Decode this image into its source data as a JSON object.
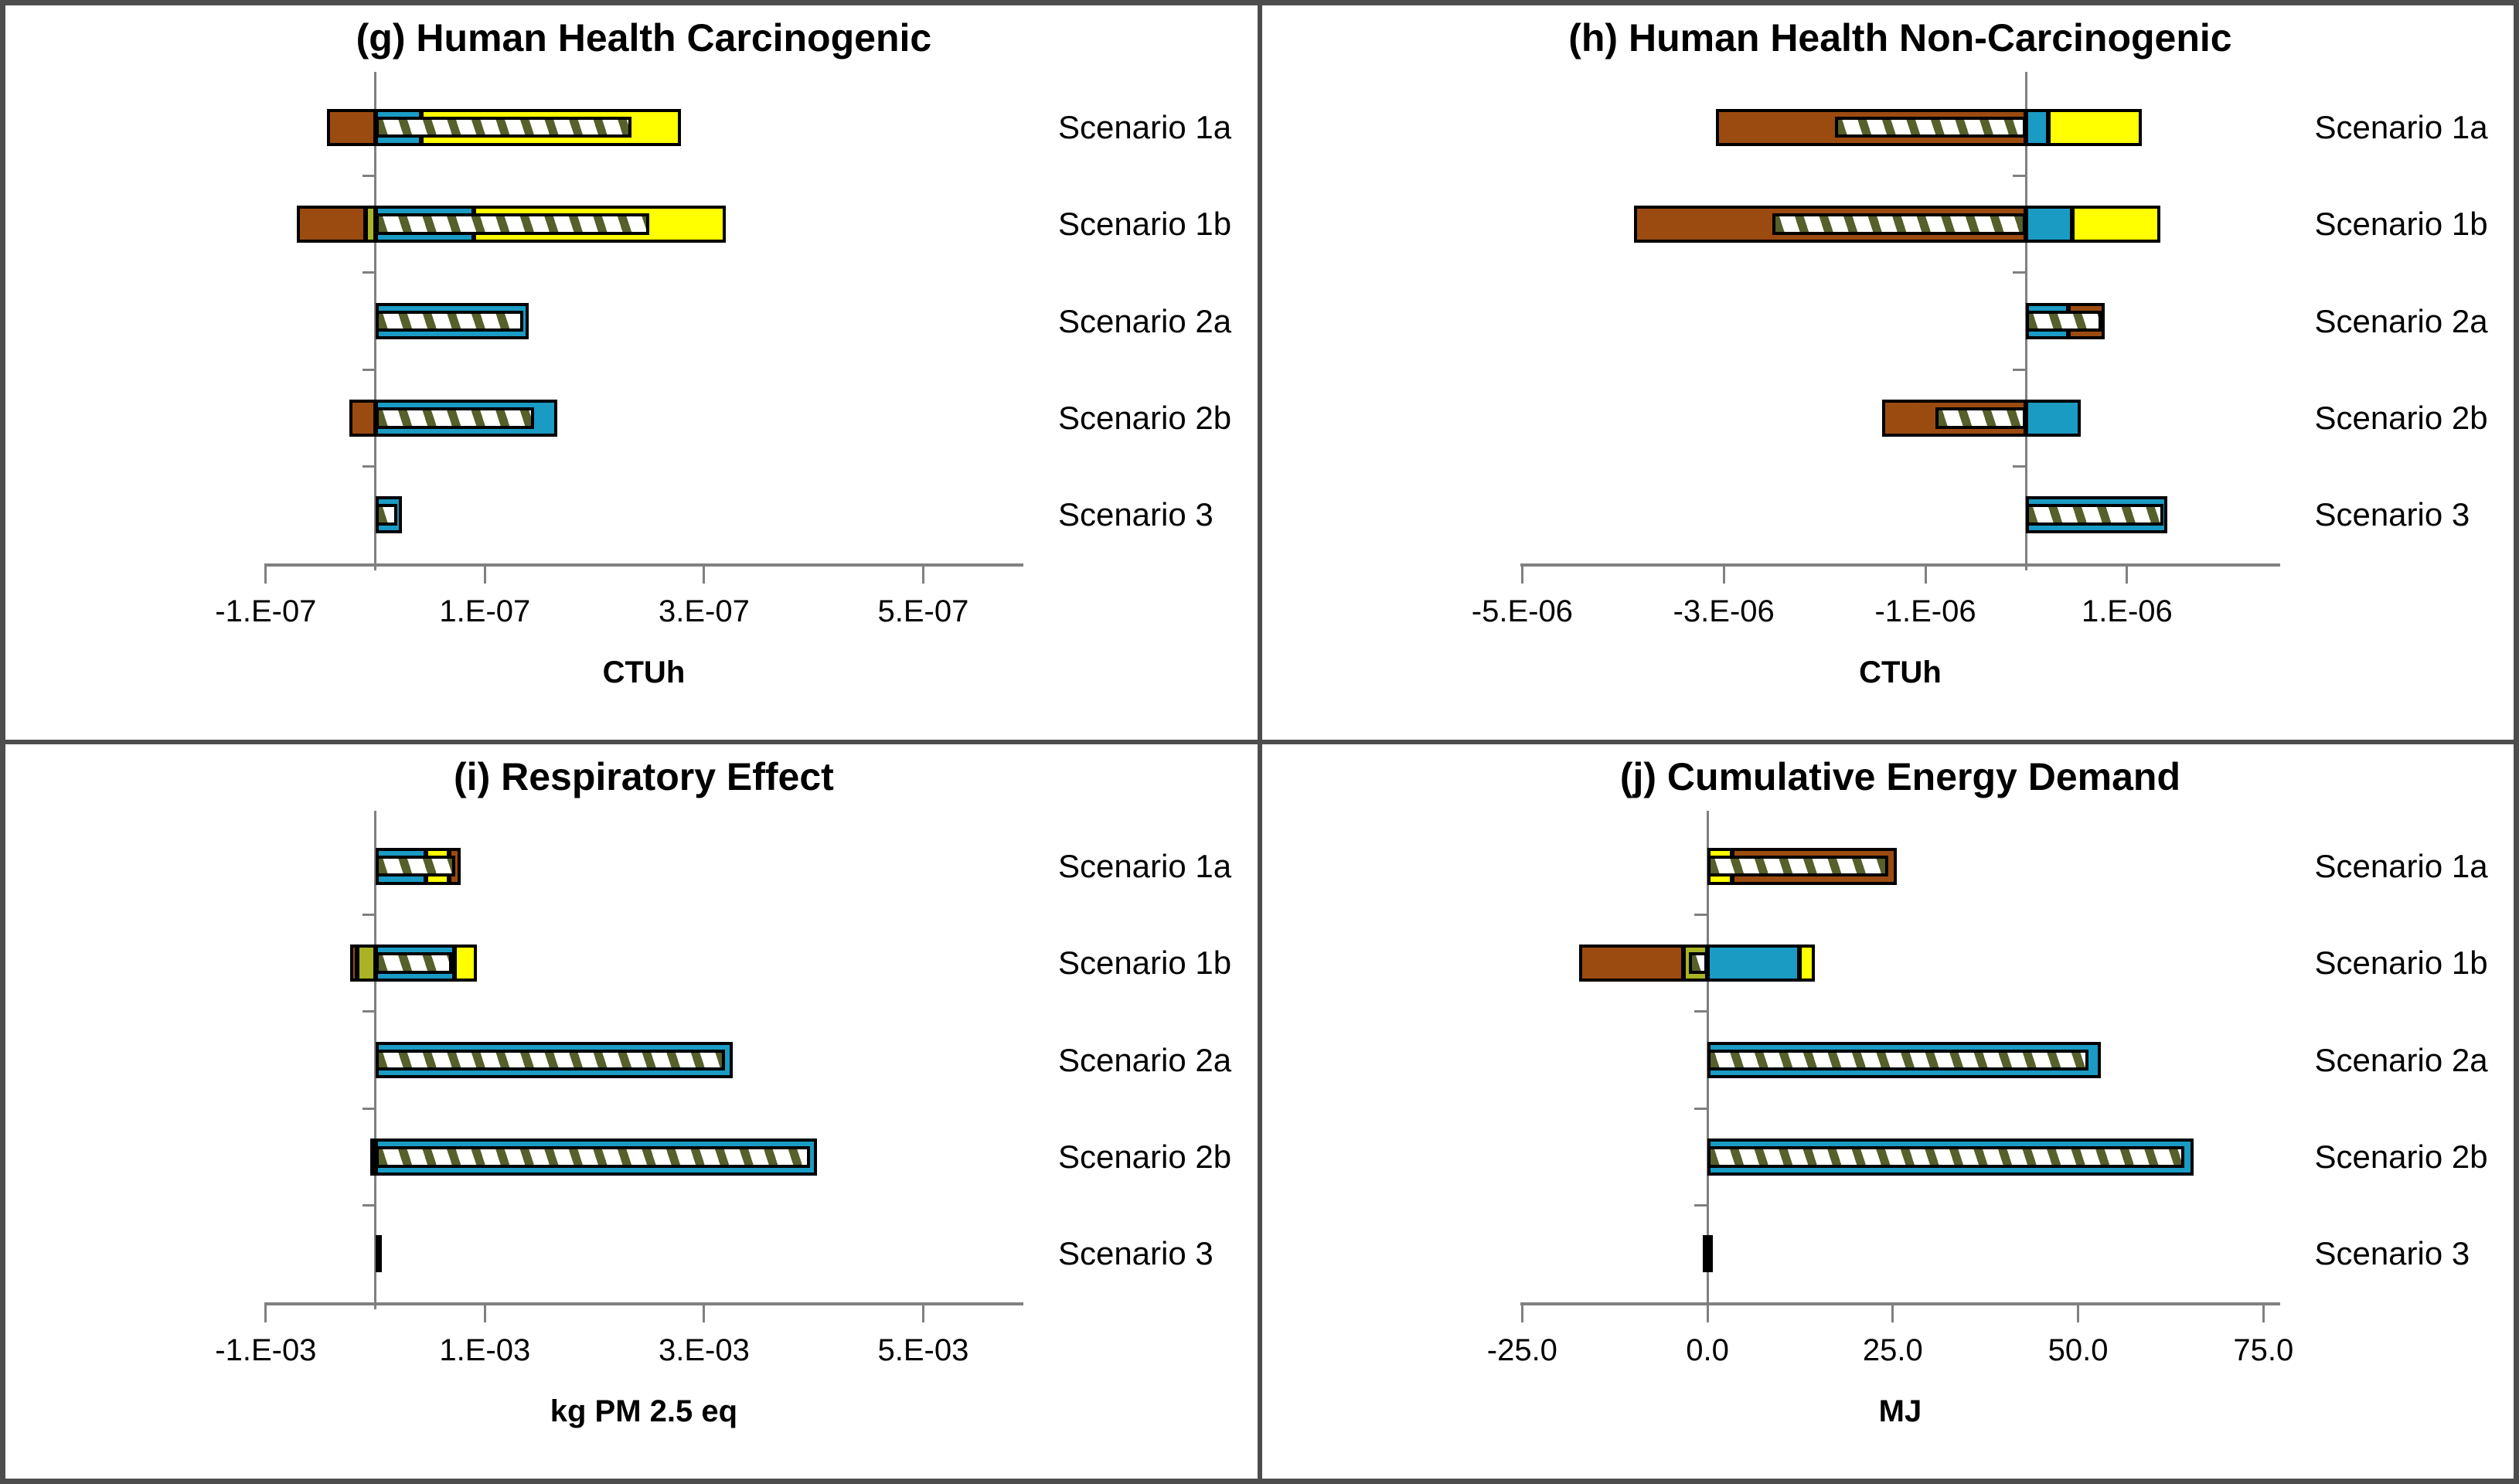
{
  "figure": {
    "background": "#ffffff",
    "border_color": "#4d4d4d",
    "scenario_labels": [
      "Scenario 1a",
      "Scenario 1b",
      "Scenario 2a",
      "Scenario 2b",
      "Scenario 3"
    ]
  },
  "palette": {
    "brown": "#9C4B10",
    "blue": "#1A9BC4",
    "yellow": "#FFFF00",
    "olive": "#A9B323",
    "black": "#000000",
    "hatch_stripe": "#55602A",
    "hatch_bg": "#FFFFFF",
    "axis_gray": "#808080",
    "bar_border": "#000000"
  },
  "chart_data": [
    {
      "id": "g",
      "type": "bar",
      "orientation": "horizontal",
      "title": "(g) Human Health Carcinogenic",
      "xlabel": "CTUh",
      "axis": {
        "min": -1e-07,
        "max": 5.9e-07
      },
      "ticks": [
        {
          "v": -1e-07,
          "label": "-1.E-07"
        },
        {
          "v": 1e-07,
          "label": "1.E-07"
        },
        {
          "v": 3e-07,
          "label": "3.E-07"
        },
        {
          "v": 5e-07,
          "label": "5.E-07"
        }
      ],
      "bars": [
        {
          "category": "Scenario 1a",
          "segments": [
            {
              "series": "brown",
              "from": -4.4e-08,
              "to": 0
            },
            {
              "series": "blue",
              "from": 0,
              "to": 4.2e-08
            },
            {
              "series": "yellow",
              "from": 4.2e-08,
              "to": 2.79e-07
            }
          ],
          "net": {
            "from": 0,
            "to": 2.34e-07
          }
        },
        {
          "category": "Scenario 1b",
          "segments": [
            {
              "series": "brown",
              "from": -7.2e-08,
              "to": -9e-09
            },
            {
              "series": "olive",
              "from": -9e-09,
              "to": 0
            },
            {
              "series": "blue",
              "from": 0,
              "to": 9e-08
            },
            {
              "series": "yellow",
              "from": 9e-08,
              "to": 3.2e-07
            }
          ],
          "net": {
            "from": 0,
            "to": 2.5e-07
          }
        },
        {
          "category": "Scenario 2a",
          "segments": [
            {
              "series": "blue",
              "from": 0,
              "to": 1.4e-07
            }
          ],
          "net": {
            "from": 0,
            "to": 1.35e-07
          }
        },
        {
          "category": "Scenario 2b",
          "segments": [
            {
              "series": "brown",
              "from": -2.4e-08,
              "to": 0
            },
            {
              "series": "blue",
              "from": 0,
              "to": 1.66e-07
            }
          ],
          "net": {
            "from": 0,
            "to": 1.45e-07
          }
        },
        {
          "category": "Scenario 3",
          "segments": [
            {
              "series": "blue",
              "from": 0,
              "to": 2.4e-08
            }
          ],
          "net": {
            "from": 0,
            "to": 2e-08
          }
        }
      ]
    },
    {
      "id": "h",
      "type": "bar",
      "orientation": "horizontal",
      "title": "(h) Human Health Non-Carcinogenic",
      "xlabel": "CTUh",
      "axis": {
        "min": -5e-06,
        "max": 2.5e-06
      },
      "ticks": [
        {
          "v": -5e-06,
          "label": "-5.E-06"
        },
        {
          "v": -3e-06,
          "label": "-3.E-06"
        },
        {
          "v": -1e-06,
          "label": "-1.E-06"
        },
        {
          "v": 1e-06,
          "label": "1.E-06"
        }
      ],
      "bars": [
        {
          "category": "Scenario 1a",
          "segments": [
            {
              "series": "brown",
              "from": -3.08e-06,
              "to": 0
            },
            {
              "series": "blue",
              "from": 0,
              "to": 2.2e-07
            },
            {
              "series": "yellow",
              "from": 2.2e-07,
              "to": 1.15e-06
            }
          ],
          "net": {
            "from": -1.9e-06,
            "to": 0
          }
        },
        {
          "category": "Scenario 1b",
          "segments": [
            {
              "series": "brown",
              "from": -3.89e-06,
              "to": 0
            },
            {
              "series": "blue",
              "from": 0,
              "to": 4.6e-07
            },
            {
              "series": "yellow",
              "from": 4.6e-07,
              "to": 1.33e-06
            }
          ],
          "net": {
            "from": -2.52e-06,
            "to": 0
          }
        },
        {
          "category": "Scenario 2a",
          "segments": [
            {
              "series": "blue",
              "from": 0,
              "to": 4.2e-07
            },
            {
              "series": "brown",
              "from": 4.2e-07,
              "to": 7.8e-07
            }
          ],
          "net": {
            "from": 0,
            "to": 7.5e-07
          }
        },
        {
          "category": "Scenario 2b",
          "segments": [
            {
              "series": "brown",
              "from": -1.43e-06,
              "to": 0
            },
            {
              "series": "blue",
              "from": 0,
              "to": 5.4e-07
            }
          ],
          "net": {
            "from": -9e-07,
            "to": 0
          }
        },
        {
          "category": "Scenario 3",
          "segments": [
            {
              "series": "blue",
              "from": 0,
              "to": 1.4e-06
            }
          ],
          "net": {
            "from": 0,
            "to": 1.36e-06
          }
        }
      ]
    },
    {
      "id": "i",
      "type": "bar",
      "orientation": "horizontal",
      "title": "(i) Respiratory Effect",
      "xlabel": "kg PM 2.5 eq",
      "axis": {
        "min": -0.001,
        "max": 0.0059
      },
      "ticks": [
        {
          "v": -0.001,
          "label": "-1.E-03"
        },
        {
          "v": 0.001,
          "label": "1.E-03"
        },
        {
          "v": 0.003,
          "label": "3.E-03"
        },
        {
          "v": 0.005,
          "label": "5.E-03"
        }
      ],
      "bars": [
        {
          "category": "Scenario 1a",
          "segments": [
            {
              "series": "blue",
              "from": 0,
              "to": 0.00046
            },
            {
              "series": "yellow",
              "from": 0.00046,
              "to": 0.00067
            },
            {
              "series": "brown",
              "from": 0.00067,
              "to": 0.00078
            }
          ],
          "net": {
            "from": 0,
            "to": 0.00073
          }
        },
        {
          "category": "Scenario 1b",
          "segments": [
            {
              "series": "brown",
              "from": -0.00023,
              "to": -0.00017
            },
            {
              "series": "olive",
              "from": -0.00017,
              "to": 0
            },
            {
              "series": "blue",
              "from": 0,
              "to": 0.00072
            },
            {
              "series": "yellow",
              "from": 0.00072,
              "to": 0.00093
            }
          ],
          "net": {
            "from": 0,
            "to": 0.0007
          }
        },
        {
          "category": "Scenario 2a",
          "segments": [
            {
              "series": "blue",
              "from": 0,
              "to": 0.00326
            }
          ],
          "net": {
            "from": 0,
            "to": 0.00319
          }
        },
        {
          "category": "Scenario 2b",
          "segments": [
            {
              "series": "brown",
              "from": -5e-05,
              "to": 0
            },
            {
              "series": "blue",
              "from": 0,
              "to": 0.00403
            }
          ],
          "net": {
            "from": 0,
            "to": 0.00397
          }
        },
        {
          "category": "Scenario 3",
          "segments": [
            {
              "series": "black",
              "from": 0,
              "to": 3e-05
            }
          ],
          "net": null
        }
      ]
    },
    {
      "id": "j",
      "type": "bar",
      "orientation": "horizontal",
      "title": "(j) Cumulative Energy Demand",
      "xlabel": "MJ",
      "axis": {
        "min": -25,
        "max": 77
      },
      "ticks": [
        {
          "v": -25,
          "label": "-25.0"
        },
        {
          "v": 0,
          "label": "0.0"
        },
        {
          "v": 25,
          "label": "25.0"
        },
        {
          "v": 50,
          "label": "50.0"
        },
        {
          "v": 75,
          "label": "75.0"
        }
      ],
      "bars": [
        {
          "category": "Scenario 1a",
          "segments": [
            {
              "series": "yellow",
              "from": 0,
              "to": 3.3
            },
            {
              "series": "brown",
              "from": 3.3,
              "to": 25.5
            }
          ],
          "net": {
            "from": 0,
            "to": 24.4
          }
        },
        {
          "category": "Scenario 1b",
          "segments": [
            {
              "series": "brown",
              "from": -17.3,
              "to": -3.2
            },
            {
              "series": "olive",
              "from": -3.2,
              "to": 0
            },
            {
              "series": "blue",
              "from": 0,
              "to": 12.4
            },
            {
              "series": "yellow",
              "from": 12.4,
              "to": 14.5
            }
          ],
          "net": {
            "from": -2.5,
            "to": 0
          }
        },
        {
          "category": "Scenario 2a",
          "segments": [
            {
              "series": "blue",
              "from": 0,
              "to": 53.1
            }
          ],
          "net": {
            "from": 0,
            "to": 51.4
          }
        },
        {
          "category": "Scenario 2b",
          "segments": [
            {
              "series": "blue",
              "from": 0,
              "to": 65.6
            }
          ],
          "net": {
            "from": 0,
            "to": 64.3
          }
        },
        {
          "category": "Scenario 3",
          "segments": [
            {
              "series": "black",
              "from": -0.6,
              "to": 0.7
            }
          ],
          "net": null
        }
      ]
    }
  ]
}
